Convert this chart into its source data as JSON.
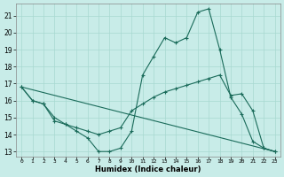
{
  "xlabel": "Humidex (Indice chaleur)",
  "bg_color": "#c8ece8",
  "grid_color": "#a8d8d0",
  "line_color": "#1a6b5a",
  "xlim": [
    -0.5,
    23.5
  ],
  "ylim": [
    12.7,
    21.7
  ],
  "yticks": [
    13,
    14,
    15,
    16,
    17,
    18,
    19,
    20,
    21
  ],
  "xticks": [
    0,
    1,
    2,
    3,
    4,
    5,
    6,
    7,
    8,
    9,
    10,
    11,
    12,
    13,
    14,
    15,
    16,
    17,
    18,
    19,
    20,
    21,
    22,
    23
  ],
  "series": [
    {
      "x": [
        0,
        1,
        2,
        3,
        4,
        5,
        6,
        7,
        8,
        9,
        10,
        11,
        12,
        13,
        14,
        15,
        16,
        17,
        18,
        19,
        20,
        21,
        22,
        23
      ],
      "y": [
        16.8,
        16.0,
        15.8,
        14.8,
        14.6,
        14.2,
        13.8,
        13.0,
        13.0,
        13.2,
        14.2,
        17.5,
        18.6,
        19.7,
        19.4,
        19.7,
        21.2,
        21.4,
        19.0,
        16.2,
        15.2,
        13.6,
        13.2,
        13.0
      ],
      "marker": true
    },
    {
      "x": [
        0,
        1,
        2,
        3,
        4,
        5,
        6,
        7,
        8,
        9,
        10,
        11,
        12,
        13,
        14,
        15,
        16,
        17,
        18,
        19,
        20,
        21,
        22,
        23
      ],
      "y": [
        16.8,
        16.0,
        15.8,
        15.0,
        14.6,
        14.4,
        14.2,
        14.0,
        14.2,
        14.4,
        15.4,
        15.8,
        16.2,
        16.5,
        16.7,
        16.9,
        17.1,
        17.3,
        17.5,
        16.3,
        16.4,
        15.4,
        13.2,
        13.0
      ],
      "marker": true
    },
    {
      "x": [
        0,
        23
      ],
      "y": [
        16.8,
        13.0
      ],
      "marker": false
    }
  ]
}
